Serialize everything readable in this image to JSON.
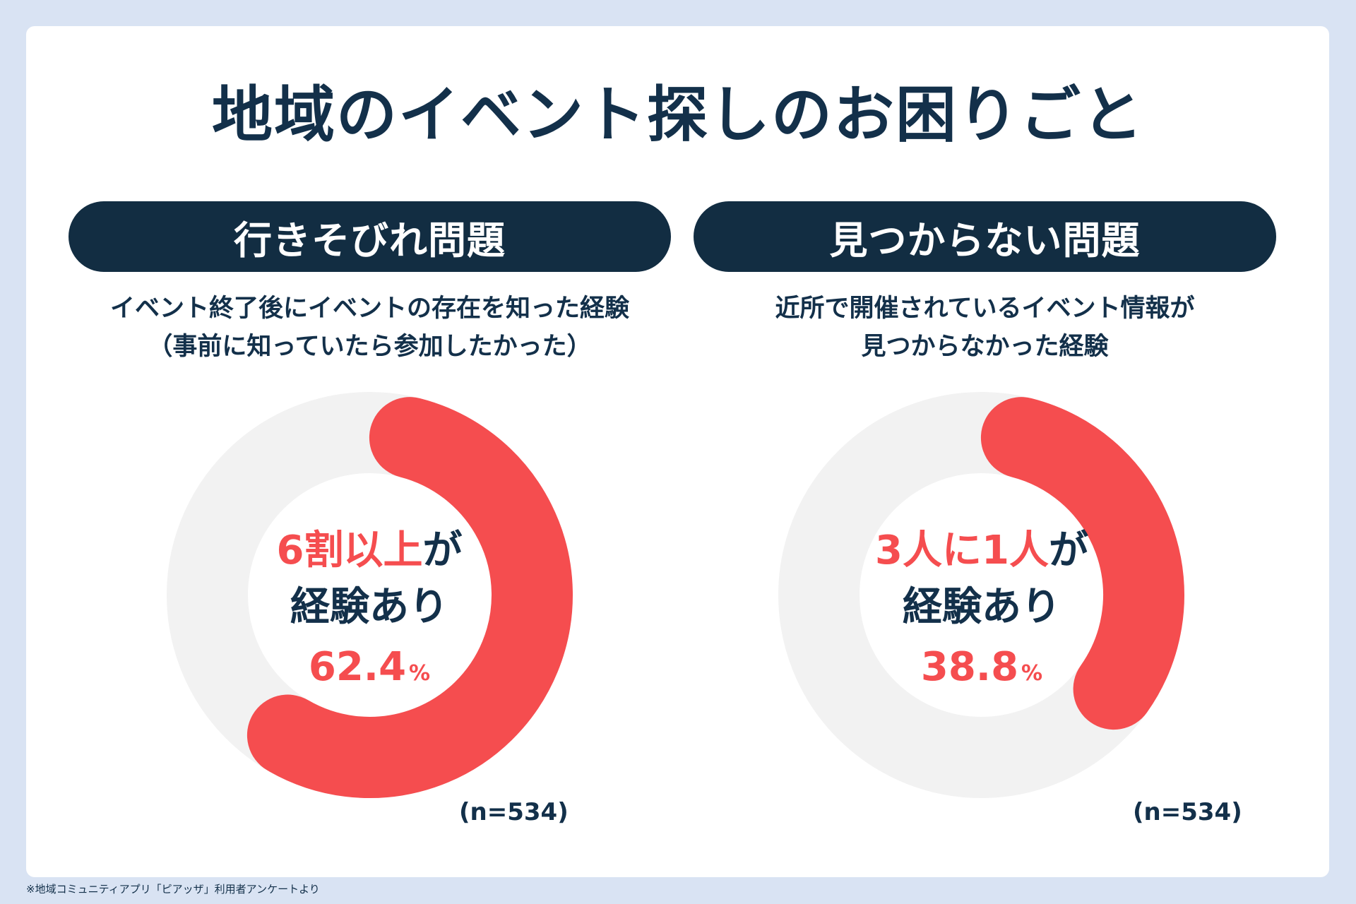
{
  "title": "地域のイベント探しのお困りごと",
  "colors": {
    "accent": "#f54d4f",
    "navy": "#122d42",
    "track": "#f2f2f2",
    "background": "#d9e3f3"
  },
  "panels": [
    {
      "heading": "行きそびれ問題",
      "description": [
        "イベント終了後にイベントの存在を知った経験",
        "（事前に知っていたら参加したかった）"
      ],
      "highlight": "6割以上",
      "highlight_suffix": "が",
      "line2": "経験あり",
      "percent_value": "62.4",
      "percent_unit": "%",
      "sample": "(n=534)"
    },
    {
      "heading": "見つからない問題",
      "description": [
        "近所で開催されているイベント情報が",
        "見つからなかった経験"
      ],
      "highlight": "3人に1人",
      "highlight_suffix": "が",
      "line2": "経験あり",
      "percent_value": "38.8",
      "percent_unit": "%",
      "sample": "(n=534)"
    }
  ],
  "chart_data": [
    {
      "type": "pie",
      "subtype": "donut",
      "title": "行きそびれ問題",
      "value": 62.4,
      "max": 100,
      "unit": "%",
      "n": 534
    },
    {
      "type": "pie",
      "subtype": "donut",
      "title": "見つからない問題",
      "value": 38.8,
      "max": 100,
      "unit": "%",
      "n": 534
    }
  ],
  "footnote": "※地域コミュニティアプリ「ピアッザ」利用者アンケートより"
}
